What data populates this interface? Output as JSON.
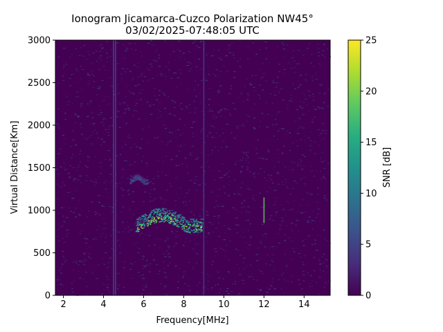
{
  "chart_data": {
    "type": "heatmap",
    "title_line1": "Ionogram Jicamarca-Cuzco Polarization NW45°",
    "title_line2": "03/02/2025-07:48:05 UTC",
    "xlabel": "Frequency[MHz]",
    "ylabel": "Virtual Distance[Km]",
    "colorbar_label": "SNR [dB]",
    "colormap": "viridis",
    "xlim": [
      1.6,
      15.3
    ],
    "ylim": [
      0,
      3000
    ],
    "clim": [
      0,
      25
    ],
    "x_ticks": [
      "2",
      "4",
      "6",
      "8",
      "10",
      "12",
      "14"
    ],
    "x_tick_values": [
      2,
      4,
      6,
      8,
      10,
      12,
      14
    ],
    "y_ticks": [
      "0",
      "500",
      "1000",
      "1500",
      "2000",
      "2500",
      "3000"
    ],
    "y_tick_values": [
      0,
      500,
      1000,
      1500,
      2000,
      2500,
      3000
    ],
    "colorbar_ticks": [
      "0",
      "5",
      "10",
      "15",
      "20",
      "25"
    ],
    "colorbar_tick_values": [
      0,
      5,
      10,
      15,
      20,
      25
    ],
    "grid": false,
    "background_snr_db": 1,
    "features": [
      {
        "kind": "echo_trace",
        "x_range": [
          5.6,
          8.9
        ],
        "y_range": [
          790,
          1150
        ],
        "peak_snr_db": 25
      },
      {
        "kind": "echo_trace",
        "x_range": [
          5.3,
          6.2
        ],
        "y_range": [
          1330,
          1480
        ],
        "peak_snr_db": 8
      },
      {
        "kind": "vertical_interference",
        "x": 4.5,
        "snr_db": 6
      },
      {
        "kind": "vertical_interference",
        "x": 4.6,
        "snr_db": 6
      },
      {
        "kind": "vertical_interference",
        "x": 9.0,
        "snr_db": 5
      },
      {
        "kind": "vertical_interference",
        "x": 12.0,
        "y_range": [
          850,
          1150
        ],
        "snr_db": 19
      }
    ]
  }
}
